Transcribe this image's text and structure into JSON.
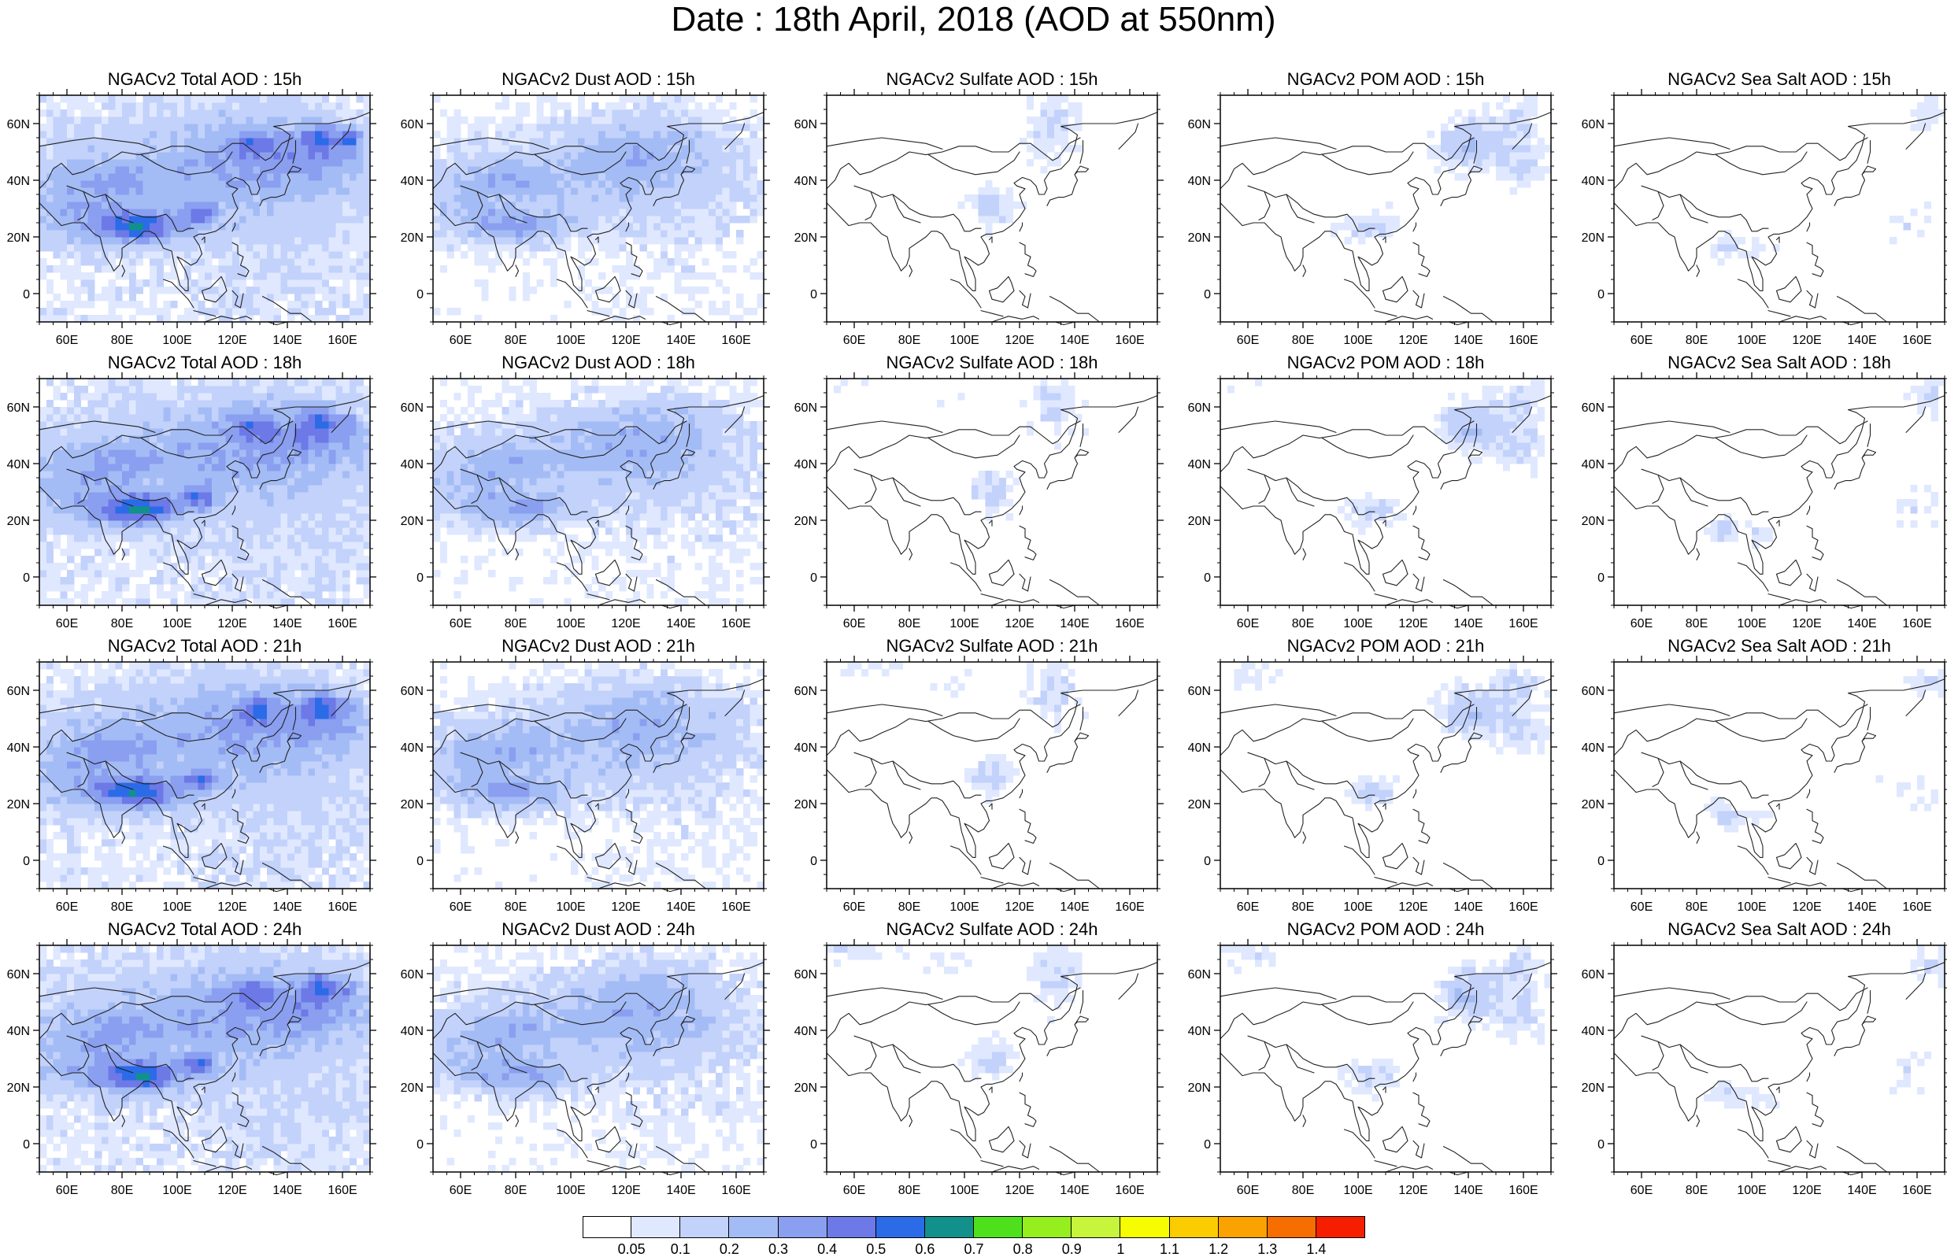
{
  "title": "Date : 18th April, 2018 (AOD at 550nm)",
  "axes": {
    "lon_ticks": [
      "60E",
      "80E",
      "100E",
      "120E",
      "140E",
      "160E"
    ],
    "lon_values": [
      60,
      80,
      100,
      120,
      140,
      160
    ],
    "lat_ticks": [
      "60N",
      "40N",
      "20N",
      "0"
    ],
    "lat_values": [
      60,
      40,
      20,
      0
    ],
    "lon_range": [
      50,
      170
    ],
    "lat_range": [
      -10,
      70
    ]
  },
  "panels": [
    {
      "title": "NGACv2 Total AOD : 15h",
      "species": "total",
      "hour": 15
    },
    {
      "title": "NGACv2 Dust AOD : 15h",
      "species": "dust",
      "hour": 15
    },
    {
      "title": "NGACv2 Sulfate AOD : 15h",
      "species": "sulfate",
      "hour": 15
    },
    {
      "title": "NGACv2 POM AOD : 15h",
      "species": "pom",
      "hour": 15
    },
    {
      "title": "NGACv2 Sea Salt AOD : 15h",
      "species": "seasalt",
      "hour": 15
    },
    {
      "title": "NGACv2 Total AOD : 18h",
      "species": "total",
      "hour": 18
    },
    {
      "title": "NGACv2 Dust AOD : 18h",
      "species": "dust",
      "hour": 18
    },
    {
      "title": "NGACv2 Sulfate AOD : 18h",
      "species": "sulfate",
      "hour": 18
    },
    {
      "title": "NGACv2 POM AOD : 18h",
      "species": "pom",
      "hour": 18
    },
    {
      "title": "NGACv2 Sea Salt AOD : 18h",
      "species": "seasalt",
      "hour": 18
    },
    {
      "title": "NGACv2 Total AOD : 21h",
      "species": "total",
      "hour": 21
    },
    {
      "title": "NGACv2 Dust AOD : 21h",
      "species": "dust",
      "hour": 21
    },
    {
      "title": "NGACv2 Sulfate AOD : 21h",
      "species": "sulfate",
      "hour": 21
    },
    {
      "title": "NGACv2 POM AOD : 21h",
      "species": "pom",
      "hour": 21
    },
    {
      "title": "NGACv2 Sea Salt AOD : 21h",
      "species": "seasalt",
      "hour": 21
    },
    {
      "title": "NGACv2 Total AOD : 24h",
      "species": "total",
      "hour": 24
    },
    {
      "title": "NGACv2 Dust AOD : 24h",
      "species": "dust",
      "hour": 24
    },
    {
      "title": "NGACv2 Sulfate AOD : 24h",
      "species": "sulfate",
      "hour": 24
    },
    {
      "title": "NGACv2 POM AOD : 24h",
      "species": "pom",
      "hour": 24
    },
    {
      "title": "NGACv2 Sea Salt  AOD : 24h",
      "species": "seasalt",
      "hour": 24
    }
  ],
  "colorbar": {
    "labels": [
      "0.05",
      "0.1",
      "0.2",
      "0.3",
      "0.4",
      "0.5",
      "0.6",
      "0.7",
      "0.8",
      "0.9",
      "1",
      "1.1",
      "1.2",
      "1.3",
      "1.4"
    ],
    "colors": [
      "#ffffff",
      "#dfe8ff",
      "#c3d2fb",
      "#a4bcf5",
      "#8a9ff0",
      "#6c79e6",
      "#2b6be8",
      "#12908c",
      "#4fe01c",
      "#95ee1d",
      "#c6f53c",
      "#f6fd00",
      "#fbcc00",
      "#f9a200",
      "#f76e00",
      "#f51f00"
    ]
  }
}
